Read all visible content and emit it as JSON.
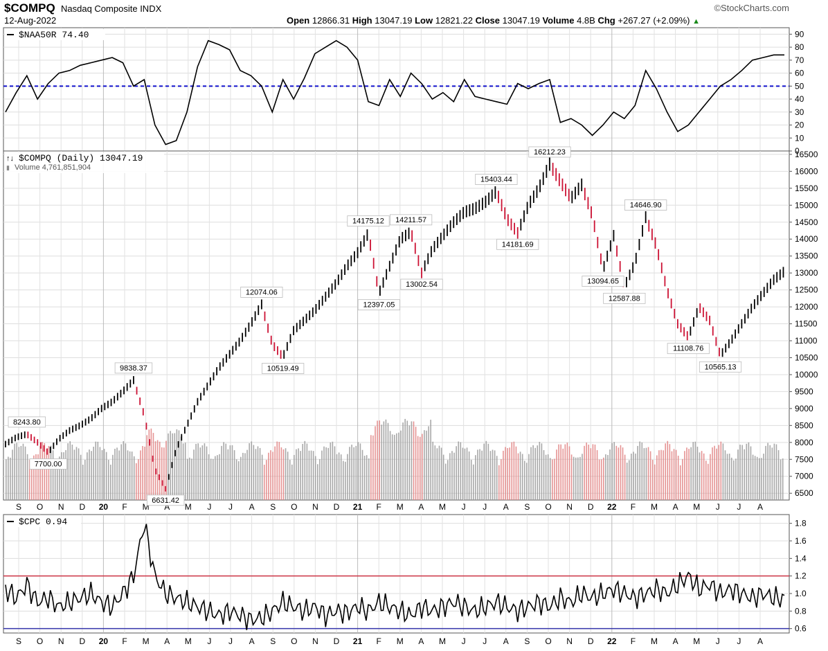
{
  "header": {
    "symbol": "$COMPQ",
    "name": "Nasdaq Composite",
    "exchange": "INDX",
    "brand": "©StockCharts.com",
    "date": "12-Aug-2022",
    "open_label": "Open",
    "open": "12866.31",
    "high_label": "High",
    "high": "13047.19",
    "low_label": "Low",
    "low": "12821.22",
    "close_label": "Close",
    "close": "13047.19",
    "volume_label": "Volume",
    "volume": "4.8B",
    "chg_label": "Chg",
    "chg": "+267.27 (+2.09%)",
    "chg_marker": "▲"
  },
  "chart_data": [
    {
      "type": "line",
      "title": "$NAA50R 74.40",
      "ylim": [
        0,
        95
      ],
      "yticks": [
        0,
        10,
        20,
        30,
        40,
        50,
        60,
        70,
        80,
        90
      ],
      "reference_line": {
        "y": 50,
        "style": "dashed",
        "color": "#1010cc"
      },
      "line_color": "#000000",
      "series": [
        {
          "x_index": [
            0,
            10,
            20,
            30,
            40,
            50,
            60,
            70,
            80,
            90,
            100,
            110,
            120,
            130,
            140,
            150,
            160,
            170,
            180,
            190,
            200,
            210,
            220,
            230,
            240,
            250,
            260,
            270,
            280,
            290,
            300,
            310,
            320,
            330,
            340,
            350,
            360,
            370,
            380,
            390,
            400,
            410,
            420,
            430,
            440,
            450,
            460,
            470,
            480,
            490,
            500,
            510,
            520,
            530,
            540,
            550,
            560,
            570,
            580,
            590,
            600,
            610,
            620,
            630,
            640,
            650,
            660,
            670,
            680,
            690,
            700,
            710,
            720,
            730
          ],
          "values": [
            30,
            45,
            58,
            40,
            52,
            60,
            62,
            66,
            68,
            70,
            72,
            68,
            50,
            55,
            20,
            5,
            8,
            30,
            65,
            85,
            82,
            78,
            62,
            58,
            50,
            30,
            55,
            40,
            56,
            75,
            80,
            85,
            80,
            70,
            38,
            35,
            55,
            42,
            60,
            52,
            40,
            45,
            38,
            55,
            42,
            40,
            38,
            36,
            52,
            48,
            52,
            55,
            22,
            25,
            20,
            12,
            20,
            30,
            25,
            35,
            62,
            48,
            30,
            15,
            20,
            30,
            40,
            50,
            55,
            62,
            70,
            72,
            74,
            74
          ]
        }
      ],
      "last_value": 74.4
    },
    {
      "type": "ohlc",
      "title": "$COMPQ (Daily) 13047.19",
      "volume_label": "Volume 4,761,851,904",
      "ylim": [
        6300,
        16600
      ],
      "yticks": [
        6500,
        7000,
        7500,
        8000,
        8500,
        9000,
        9500,
        10000,
        10500,
        11000,
        11500,
        12000,
        12500,
        13000,
        13500,
        14000,
        14500,
        15000,
        15500,
        16000,
        16500
      ],
      "x_labels": [
        "S",
        "O",
        "N",
        "D",
        "20",
        "F",
        "M",
        "A",
        "M",
        "J",
        "J",
        "A",
        "S",
        "O",
        "N",
        "D",
        "21",
        "F",
        "M",
        "A",
        "M",
        "J",
        "J",
        "A",
        "S",
        "O",
        "N",
        "D",
        "22",
        "F",
        "M",
        "A",
        "M",
        "J",
        "J",
        "A"
      ],
      "series": [
        {
          "name": "$COMPQ",
          "x_index": [
            0,
            10,
            20,
            30,
            40,
            50,
            60,
            70,
            80,
            90,
            100,
            110,
            120,
            130,
            140,
            150,
            160,
            170,
            180,
            190,
            200,
            210,
            220,
            230,
            240,
            250,
            260,
            270,
            280,
            290,
            300,
            310,
            320,
            330,
            340,
            350,
            360,
            370,
            380,
            390,
            400,
            410,
            420,
            430,
            440,
            450,
            460,
            470,
            480,
            490,
            500,
            510,
            520,
            530,
            540,
            550,
            560,
            570,
            580,
            590,
            600,
            610,
            620,
            630,
            640,
            650,
            660,
            670,
            680,
            690,
            700,
            710,
            720,
            730
          ],
          "values": [
            7950,
            8150,
            8243.8,
            8000,
            7700,
            8100,
            8350,
            8500,
            8700,
            9000,
            9200,
            9500,
            9838.37,
            8800,
            7200,
            6631.42,
            7800,
            8500,
            9200,
            9700,
            10200,
            10600,
            11000,
            11500,
            12074.06,
            10900,
            10519.49,
            11300,
            11600,
            11900,
            12300,
            12700,
            13200,
            13600,
            14175.12,
            12397.05,
            13200,
            14000,
            14211.57,
            13002.54,
            13700,
            14100,
            14500,
            14800,
            14900,
            15100,
            15403.44,
            14600,
            14181.69,
            15000,
            15500,
            16212.23,
            15700,
            15200,
            15600,
            14700,
            13094.65,
            14100,
            12587.88,
            13300,
            14646.9,
            13800,
            12500,
            11500,
            11108.76,
            12000,
            11600,
            10565.13,
            11000,
            11500,
            12000,
            12400,
            12800,
            13047.19
          ]
        }
      ],
      "annotations": [
        {
          "label": "8243.80",
          "value": 8243.8
        },
        {
          "label": "7700.00",
          "value": 7700.0
        },
        {
          "label": "9838.37",
          "value": 9838.37
        },
        {
          "label": "6631.42",
          "value": 6631.42
        },
        {
          "label": "12074.06",
          "value": 12074.06
        },
        {
          "label": "10519.49",
          "value": 10519.49
        },
        {
          "label": "14175.12",
          "value": 14175.12
        },
        {
          "label": "12397.05",
          "value": 12397.05
        },
        {
          "label": "14211.57",
          "value": 14211.57
        },
        {
          "label": "13002.54",
          "value": 13002.54
        },
        {
          "label": "15403.44",
          "value": 15403.44
        },
        {
          "label": "14181.69",
          "value": 14181.69
        },
        {
          "label": "16212.23",
          "value": 16212.23
        },
        {
          "label": "13094.65",
          "value": 13094.65
        },
        {
          "label": "12587.88",
          "value": 12587.88
        },
        {
          "label": "14646.90",
          "value": 14646.9
        },
        {
          "label": "11108.76",
          "value": 11108.76
        },
        {
          "label": "10565.13",
          "value": 10565.13
        }
      ],
      "up_color": "#000000",
      "down_color": "#cc1133",
      "volume_up_color": "#999999",
      "volume_down_color": "#e08080"
    },
    {
      "type": "line",
      "title": "$CPC 0.94",
      "ylim": [
        0.55,
        1.9
      ],
      "yticks": [
        0.6,
        0.8,
        1.0,
        1.2,
        1.4,
        1.6,
        1.8
      ],
      "reference_lines": [
        {
          "y": 1.2,
          "color": "#cc3344"
        },
        {
          "y": 0.6,
          "color": "#3333aa"
        }
      ],
      "line_color": "#000000",
      "x_labels": [
        "S",
        "O",
        "N",
        "D",
        "20",
        "F",
        "M",
        "A",
        "M",
        "J",
        "J",
        "A",
        "S",
        "O",
        "N",
        "D",
        "21",
        "F",
        "M",
        "A",
        "M",
        "J",
        "J",
        "A",
        "S",
        "O",
        "N",
        "D",
        "22",
        "F",
        "M",
        "A",
        "M",
        "J",
        "J",
        "A"
      ],
      "series": [
        {
          "x_index": [
            0,
            10,
            20,
            30,
            40,
            50,
            60,
            70,
            80,
            90,
            100,
            110,
            120,
            130,
            140,
            150,
            160,
            170,
            180,
            190,
            200,
            210,
            220,
            230,
            240,
            250,
            260,
            270,
            280,
            290,
            300,
            310,
            320,
            330,
            340,
            350,
            360,
            370,
            380,
            390,
            400,
            410,
            420,
            430,
            440,
            450,
            460,
            470,
            480,
            490,
            500,
            510,
            520,
            530,
            540,
            550,
            560,
            570,
            580,
            590,
            600,
            610,
            620,
            630,
            640,
            650,
            660,
            670,
            680,
            690,
            700,
            710,
            720,
            730
          ],
          "values": [
            1.05,
            0.95,
            1.1,
            0.9,
            0.95,
            0.85,
            0.9,
            0.95,
            1.0,
            0.9,
            0.85,
            1.0,
            1.2,
            1.8,
            1.2,
            1.0,
            0.95,
            0.9,
            0.85,
            0.8,
            0.75,
            0.8,
            0.75,
            0.7,
            0.72,
            0.8,
            0.9,
            0.85,
            0.8,
            0.85,
            0.75,
            0.8,
            0.78,
            0.85,
            0.8,
            0.9,
            0.85,
            0.8,
            0.75,
            0.85,
            0.8,
            0.85,
            0.9,
            0.85,
            0.8,
            0.85,
            0.9,
            0.85,
            0.8,
            0.85,
            0.9,
            0.85,
            0.95,
            0.9,
            1.0,
            0.95,
            1.0,
            1.05,
            1.0,
            0.95,
            1.0,
            1.05,
            1.0,
            1.1,
            1.2,
            1.05,
            1.1,
            1.0,
            1.05,
            1.0,
            0.95,
            1.0,
            0.95,
            0.94
          ]
        }
      ],
      "last_value": 0.94
    }
  ]
}
